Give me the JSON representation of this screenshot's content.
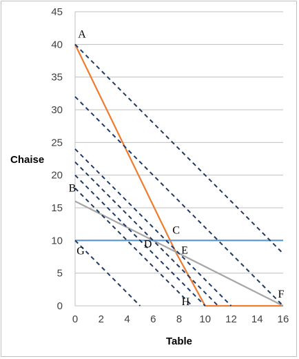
{
  "chart_data": {
    "type": "line",
    "title": "",
    "xlabel": "Table",
    "ylabel": "Chaise",
    "xlim": [
      0,
      16
    ],
    "ylim": [
      0,
      45
    ],
    "xticks": [
      0,
      2,
      4,
      6,
      8,
      10,
      12,
      14,
      16
    ],
    "yticks": [
      0,
      5,
      10,
      15,
      20,
      25,
      30,
      35,
      40,
      45
    ],
    "grid": "horizontal",
    "legend": "none",
    "colors": {
      "constraint_orange": "#ed7d31",
      "constraint_grey": "#a6a6a6",
      "constraint_blue": "#5b9bd5",
      "isoprofit_dashed": "#1f3864",
      "gridline": "#bfbfbf"
    },
    "series": [
      {
        "style": "solid",
        "color": "#ed7d31",
        "points": [
          [
            0,
            40
          ],
          [
            7.8,
            8
          ],
          [
            10,
            0
          ],
          [
            16,
            0
          ]
        ]
      },
      {
        "style": "solid",
        "color": "#a6a6a6",
        "points": [
          [
            0,
            16
          ],
          [
            16,
            0
          ]
        ]
      },
      {
        "style": "solid",
        "color": "#5b9bd5",
        "points": [
          [
            0,
            10
          ],
          [
            16,
            10
          ]
        ]
      },
      {
        "style": "dashed",
        "color": "#1f3864",
        "points": [
          [
            0,
            10
          ],
          [
            5,
            0
          ]
        ]
      },
      {
        "style": "dashed",
        "color": "#1f3864",
        "points": [
          [
            0,
            18
          ],
          [
            9,
            0
          ]
        ]
      },
      {
        "style": "dashed",
        "color": "#1f3864",
        "points": [
          [
            0,
            20
          ],
          [
            10,
            0
          ]
        ]
      },
      {
        "style": "dashed",
        "color": "#1f3864",
        "points": [
          [
            0,
            22
          ],
          [
            11,
            0
          ]
        ]
      },
      {
        "style": "dashed",
        "color": "#1f3864",
        "points": [
          [
            0,
            24
          ],
          [
            12,
            0
          ]
        ]
      },
      {
        "style": "dashed",
        "color": "#1f3864",
        "points": [
          [
            0,
            32
          ],
          [
            16,
            0
          ]
        ]
      },
      {
        "style": "dashed",
        "color": "#1f3864",
        "points": [
          [
            0,
            40
          ],
          [
            16,
            8
          ]
        ]
      }
    ],
    "annotations": [
      {
        "text": "A",
        "x": 0,
        "y": 40,
        "dx": 10,
        "dy": -10
      },
      {
        "text": "B",
        "x": 0,
        "y": 18,
        "dx": -4,
        "dy": 5
      },
      {
        "text": "C",
        "x": 7.4,
        "y": 10,
        "dx": 7,
        "dy": -10
      },
      {
        "text": "D",
        "x": 5.6,
        "y": 10,
        "dx": 0,
        "dy": 10
      },
      {
        "text": "E",
        "x": 8,
        "y": 8,
        "dx": 8,
        "dy": 0
      },
      {
        "text": "F",
        "x": 16,
        "y": 0,
        "dx": -3,
        "dy": -12
      },
      {
        "text": "G",
        "x": 0,
        "y": 10,
        "dx": 8,
        "dy": 20
      },
      {
        "text": "H",
        "x": 8.5,
        "y": 0,
        "dx": 0,
        "dy": -1
      }
    ]
  }
}
